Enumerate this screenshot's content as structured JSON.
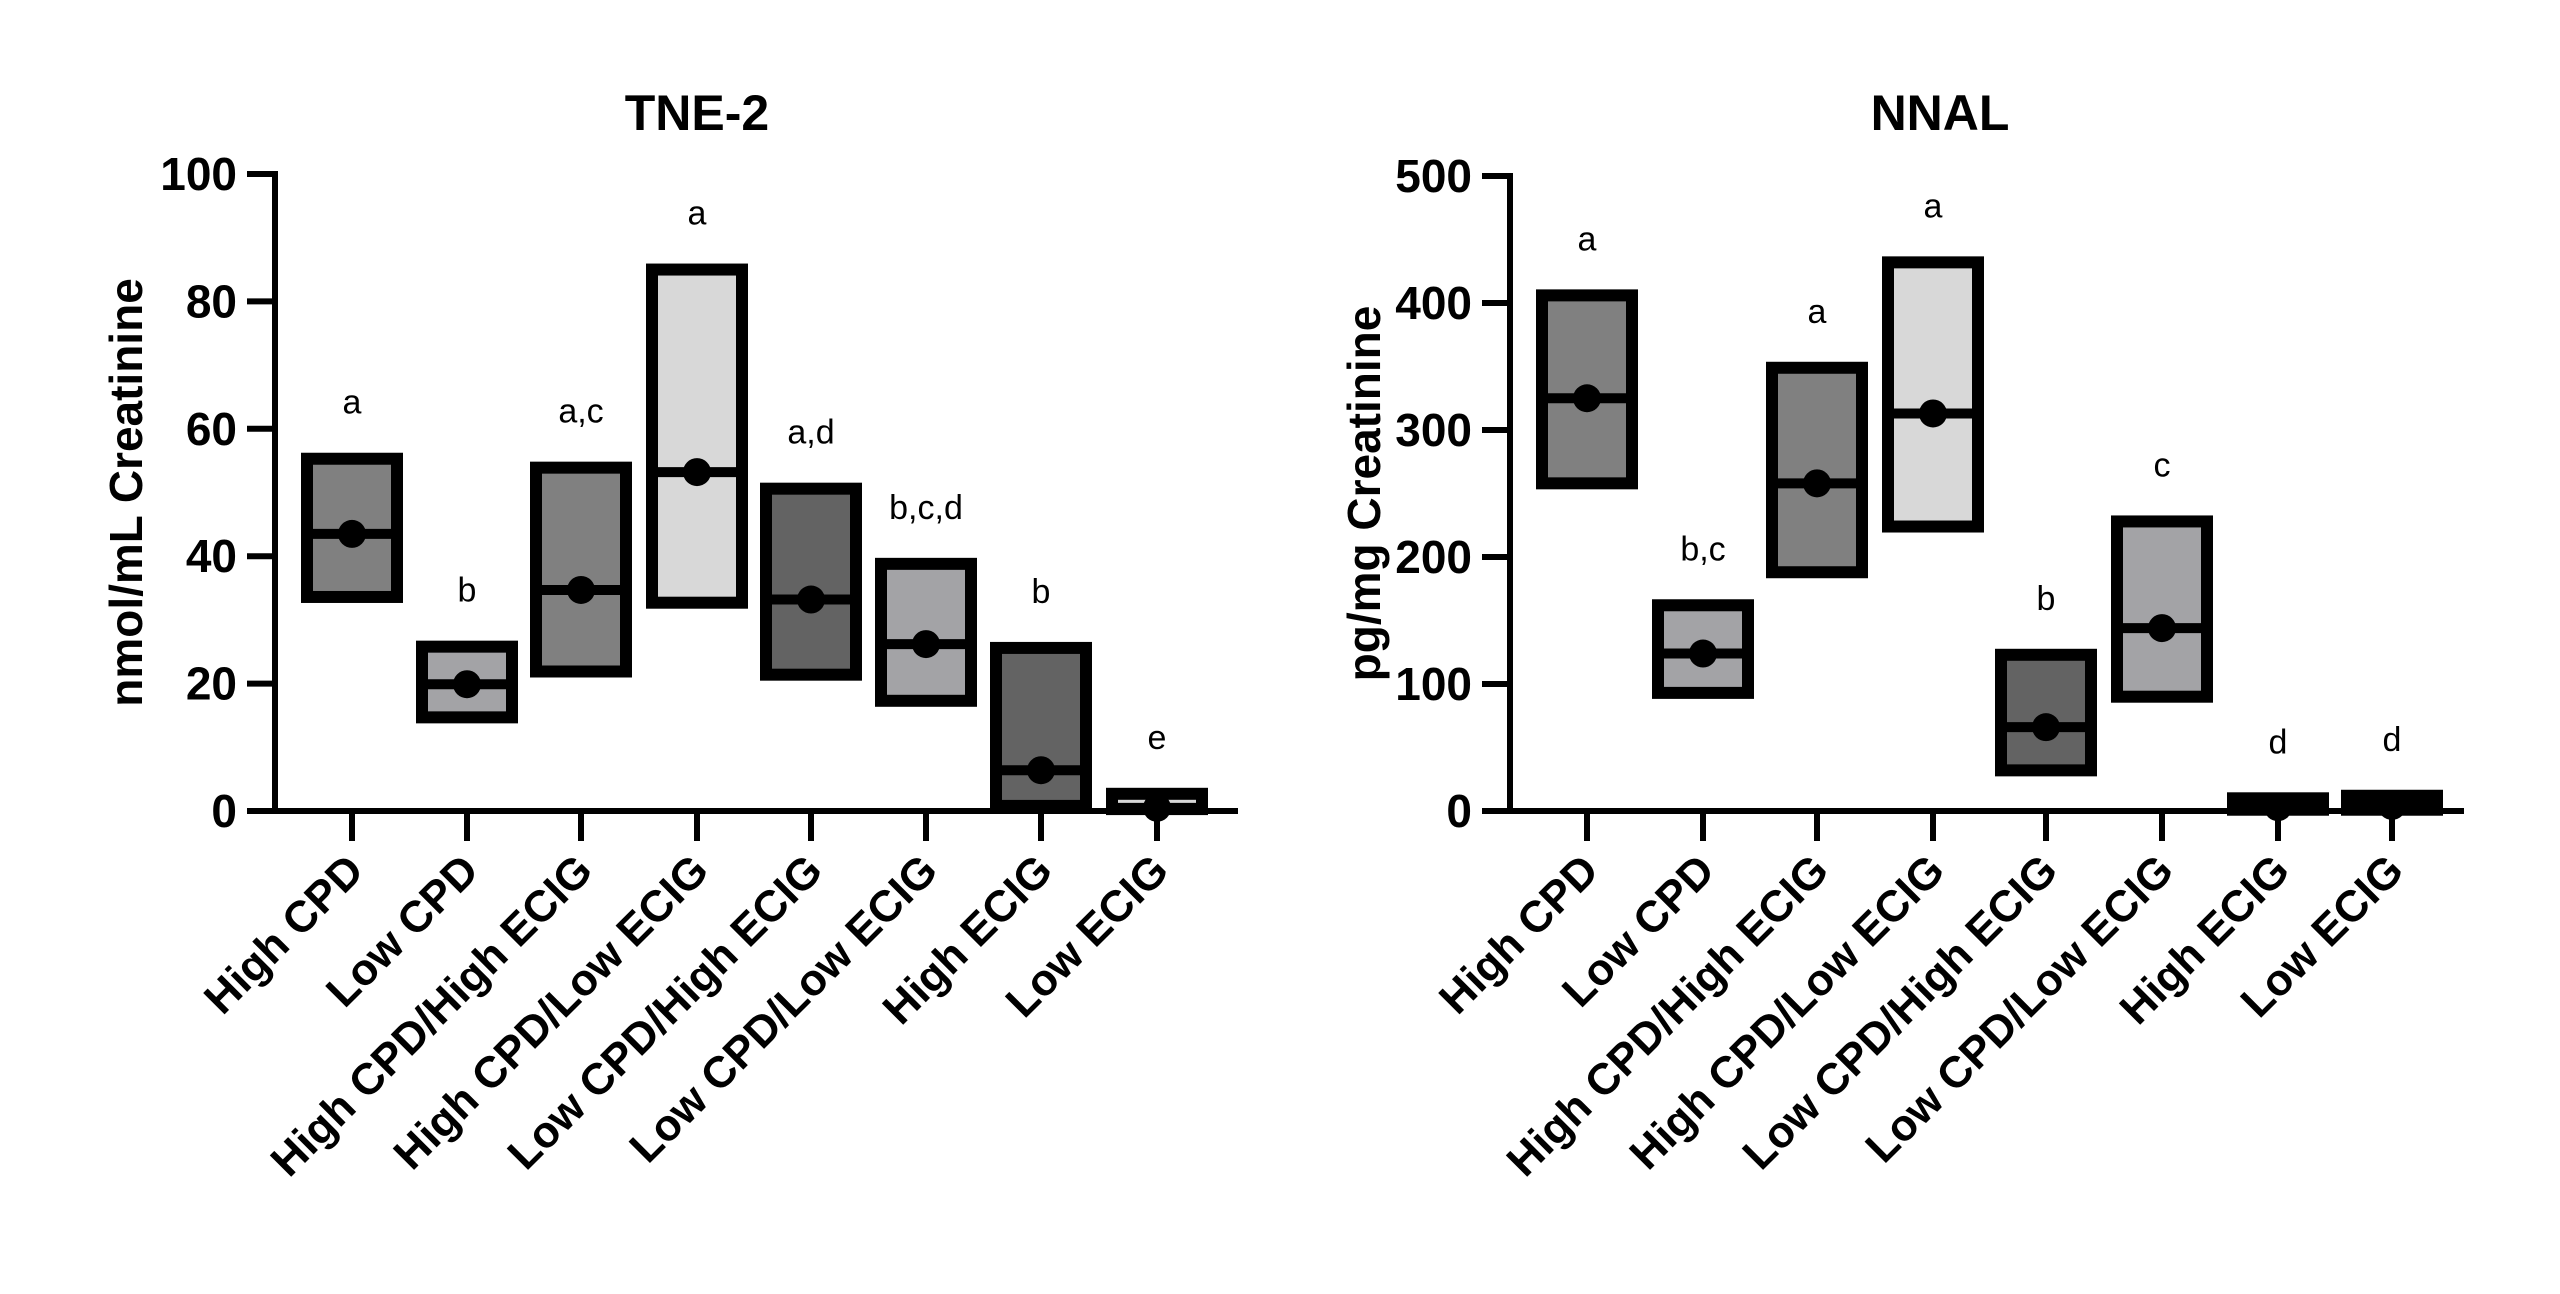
{
  "chart_data": [
    {
      "type": "box",
      "title": "TNE-2",
      "xlabel": "",
      "ylabel": "nmol/mL Creatinine",
      "ylim": [
        0,
        100
      ],
      "yticks": [
        "0",
        "20",
        "40",
        "60",
        "80",
        "100"
      ],
      "ytick_values": [
        0,
        20,
        40,
        60,
        80,
        100
      ],
      "grid": false,
      "categories": [
        "High CPD",
        "Low CPD",
        "High CPD/High ECIG",
        "High CPD/Low ECIG",
        "Low CPD/High ECIG",
        "Low CPD/Low ECIG",
        "High ECIG",
        "Low ECIG"
      ],
      "series": [
        {
          "name": "High CPD",
          "q1": 33.6,
          "median": 43.5,
          "q3": 55.3,
          "fill": "#808080",
          "significance": "a"
        },
        {
          "name": "Low CPD",
          "q1": 14.7,
          "median": 19.9,
          "q3": 25.8,
          "fill": "#a3a3a6",
          "significance": "b"
        },
        {
          "name": "High CPD/High ECIG",
          "q1": 21.9,
          "median": 34.7,
          "q3": 53.9,
          "fill": "#808080",
          "significance": "a,c"
        },
        {
          "name": "High CPD/Low ECIG",
          "q1": 32.7,
          "median": 53.2,
          "q3": 85.0,
          "fill": "#d8d8d8",
          "significance": "a"
        },
        {
          "name": "Low CPD/High ECIG",
          "q1": 21.4,
          "median": 33.2,
          "q3": 50.6,
          "fill": "#636363",
          "significance": "a,d"
        },
        {
          "name": "Low CPD/Low ECIG",
          "q1": 17.3,
          "median": 26.2,
          "q3": 38.8,
          "fill": "#a3a3a6",
          "significance": "b,c,d"
        },
        {
          "name": "High ECIG",
          "q1": 0.8,
          "median": 6.4,
          "q3": 25.6,
          "fill": "#636363",
          "significance": "b"
        },
        {
          "name": "Low ECIG",
          "q1": 0.3,
          "median": 0.5,
          "q3": 2.7,
          "fill": "#d8d8d8",
          "significance": "e"
        }
      ]
    },
    {
      "type": "box",
      "title": "NNAL",
      "xlabel": "",
      "ylabel": "pg/mg Creatinine",
      "ylim": [
        0,
        500
      ],
      "yticks": [
        "0",
        "100",
        "200",
        "300",
        "400",
        "500"
      ],
      "ytick_values": [
        0,
        100,
        200,
        300,
        400,
        500
      ],
      "grid": false,
      "categories": [
        "High CPD",
        "Low CPD",
        "High CPD/High ECIG",
        "High CPD/Low ECIG",
        "Low CPD/High ECIG",
        "Low CPD/Low ECIG",
        "High ECIG",
        "Low ECIG"
      ],
      "series": [
        {
          "name": "High CPD",
          "q1": 258,
          "median": 325,
          "q3": 406,
          "fill": "#808080",
          "significance": "a"
        },
        {
          "name": "Low CPD",
          "q1": 93,
          "median": 124,
          "q3": 162,
          "fill": "#a3a3a6",
          "significance": "b,c"
        },
        {
          "name": "High CPD/High ECIG",
          "q1": 188,
          "median": 258,
          "q3": 349,
          "fill": "#808080",
          "significance": "a"
        },
        {
          "name": "High CPD/Low ECIG",
          "q1": 224,
          "median": 313,
          "q3": 432,
          "fill": "#d8d8d8",
          "significance": "a"
        },
        {
          "name": "Low CPD/High ECIG",
          "q1": 32,
          "median": 66,
          "q3": 123,
          "fill": "#636363",
          "significance": "b"
        },
        {
          "name": "Low CPD/Low ECIG",
          "q1": 90,
          "median": 144,
          "q3": 228,
          "fill": "#a3a3a6",
          "significance": "c"
        },
        {
          "name": "High ECIG",
          "q1": 1,
          "median": 3,
          "q3": 10,
          "fill": "#000000",
          "significance": "d"
        },
        {
          "name": "Low ECIG",
          "q1": 1,
          "median": 4,
          "q3": 12,
          "fill": "#000000",
          "significance": "d"
        }
      ]
    }
  ]
}
